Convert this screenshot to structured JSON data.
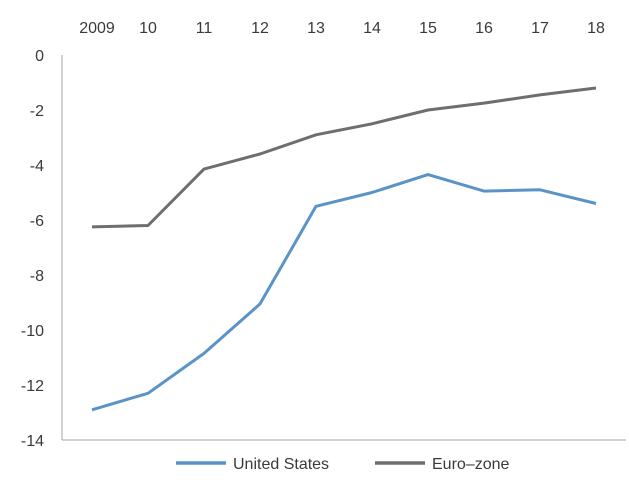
{
  "chart_data": {
    "type": "line",
    "categories": [
      "2009",
      "10",
      "11",
      "12",
      "13",
      "14",
      "15",
      "16",
      "17",
      "18"
    ],
    "y_ticks": [
      "0",
      "-2",
      "-4",
      "-6",
      "-8",
      "-10",
      "-12",
      "-14"
    ],
    "ylim": [
      -14,
      0
    ],
    "grid": false,
    "legend_position": "bottom",
    "series": [
      {
        "name": "United States",
        "color": "#5b93c7",
        "values": [
          -12.9,
          -12.3,
          -10.85,
          -9.05,
          -5.5,
          -5.0,
          -4.35,
          -4.95,
          -4.9,
          -5.4
        ]
      },
      {
        "name": "Euro–zone",
        "color": "#6e6e6e",
        "values": [
          -6.25,
          -6.2,
          -4.15,
          -3.6,
          -2.9,
          -2.5,
          -2.0,
          -1.75,
          -1.45,
          -1.2
        ]
      }
    ],
    "axis_color": "#a6a6a6"
  }
}
